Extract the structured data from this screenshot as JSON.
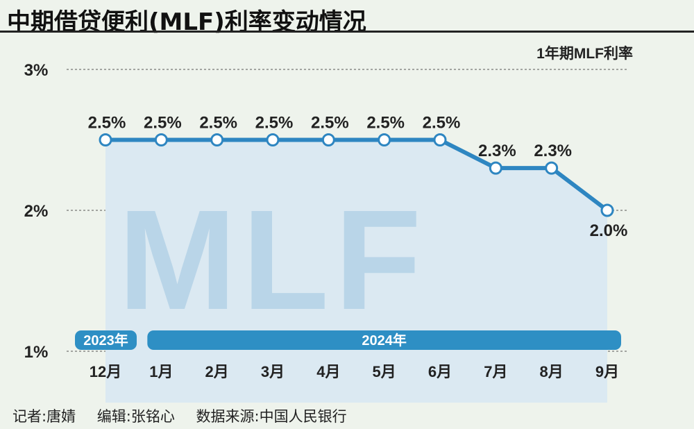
{
  "title": "中期借贷便利(MLF)利率变动情况",
  "credits": {
    "reporter": "记者:唐婧",
    "editor": "编辑:张铭心",
    "source": "数据来源:中国人民银行"
  },
  "watermark": "MLF",
  "colors": {
    "line": "#2e86c1",
    "area": "#dbe9f2",
    "watermark": "#b9d5e8",
    "band": "#2e8fc4",
    "background": "#eef3ec"
  },
  "chart_data": {
    "type": "line",
    "legend_label": "1年期MLF利率",
    "categories": [
      "12月",
      "1月",
      "2月",
      "3月",
      "4月",
      "5月",
      "6月",
      "7月",
      "8月",
      "9月"
    ],
    "series": [
      {
        "values": [
          2.5,
          2.5,
          2.5,
          2.5,
          2.5,
          2.5,
          2.5,
          2.3,
          2.3,
          2.0
        ]
      }
    ],
    "data_labels": [
      "2.5%",
      "2.5%",
      "2.5%",
      "2.5%",
      "2.5%",
      "2.5%",
      "2.5%",
      "2.3%",
      "2.3%",
      "2.0%"
    ],
    "y_ticks": [
      {
        "value": 3,
        "label": "3%"
      },
      {
        "value": 2,
        "label": "2%"
      },
      {
        "value": 1,
        "label": "1%"
      }
    ],
    "ylim": [
      1,
      3
    ],
    "grid": true,
    "year_bands": [
      {
        "label": "2023年",
        "from": 0,
        "to": 0
      },
      {
        "label": "2024年",
        "from": 1,
        "to": 9
      }
    ]
  }
}
